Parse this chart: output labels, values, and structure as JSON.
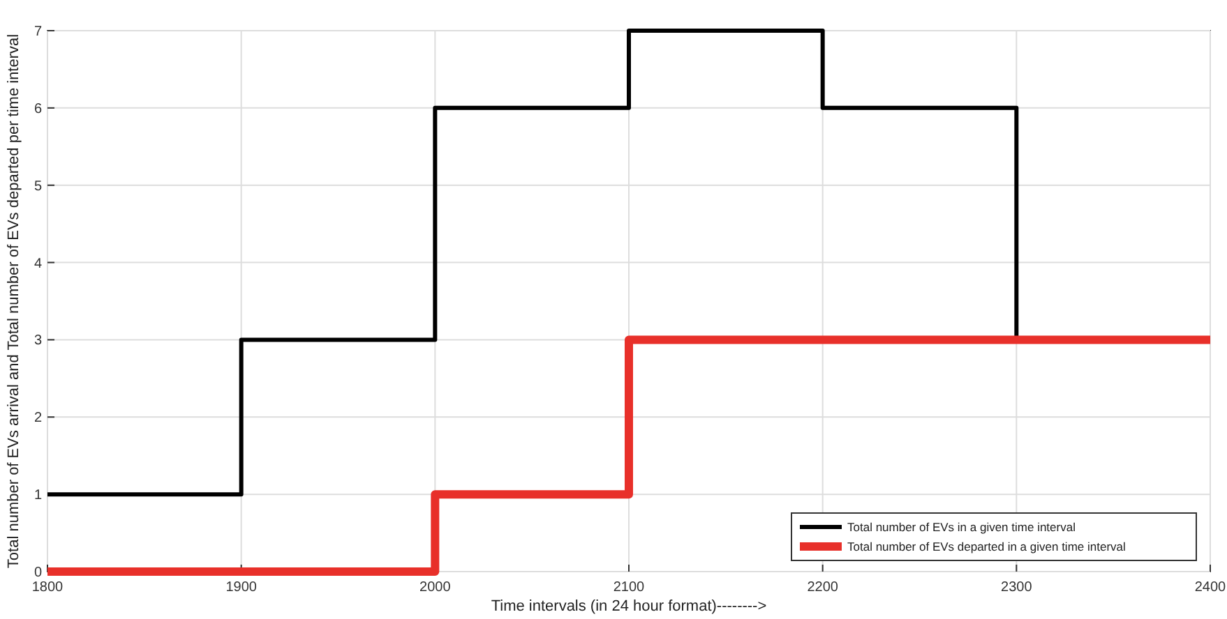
{
  "chart_data": {
    "type": "step",
    "xlabel": "Time intervals (in 24 hour format)-------->",
    "ylabel": "Total number of EVs arrival  and Total number of EVs departed per time interval",
    "x": [
      1800,
      1900,
      2000,
      2100,
      2200,
      2300,
      2400
    ],
    "series": [
      {
        "name": "Total number of EVs in a given time interval",
        "color": "#000000",
        "values": [
          1,
          3,
          6,
          7,
          6,
          3,
          null
        ]
      },
      {
        "name": "Total number of EVs departed in a given time interval",
        "color": "#e8302a",
        "values": [
          0,
          0,
          1,
          3,
          3,
          3,
          3
        ]
      }
    ],
    "xlim": [
      1800,
      2400
    ],
    "xticks": [
      1800,
      1900,
      2000,
      2100,
      2200,
      2300,
      2400
    ],
    "ylim": [
      0,
      7
    ],
    "yticks": [
      0,
      1,
      2,
      3,
      4,
      5,
      6,
      7
    ],
    "grid": true,
    "legend": "bottom right",
    "line_style": "solid"
  }
}
